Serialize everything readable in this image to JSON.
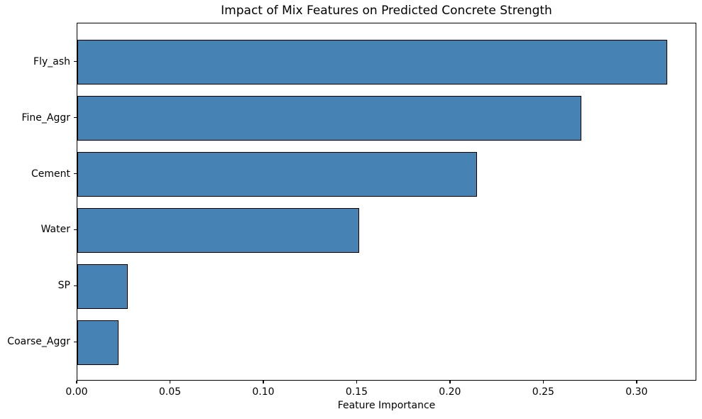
{
  "chart_data": {
    "type": "bar",
    "orientation": "horizontal",
    "title": "Impact of Mix Features on Predicted Concrete Strength",
    "xlabel": "Feature Importance",
    "ylabel": "",
    "categories": [
      "Fly_ash",
      "Fine_Aggr",
      "Cement",
      "Water",
      "SP",
      "Coarse_Aggr"
    ],
    "values": [
      0.316,
      0.27,
      0.214,
      0.151,
      0.027,
      0.022
    ],
    "xlim": [
      0,
      0.332
    ],
    "xticks": [
      0.0,
      0.05,
      0.1,
      0.15,
      0.2,
      0.25,
      0.3
    ],
    "xtick_labels": [
      "0.00",
      "0.05",
      "0.10",
      "0.15",
      "0.20",
      "0.25",
      "0.30"
    ],
    "grid": false,
    "legend": "none",
    "bar_color": "#4682B4",
    "bar_edge_color": "#000000",
    "background_color": "#ffffff",
    "sorted": "descending-from-top"
  }
}
